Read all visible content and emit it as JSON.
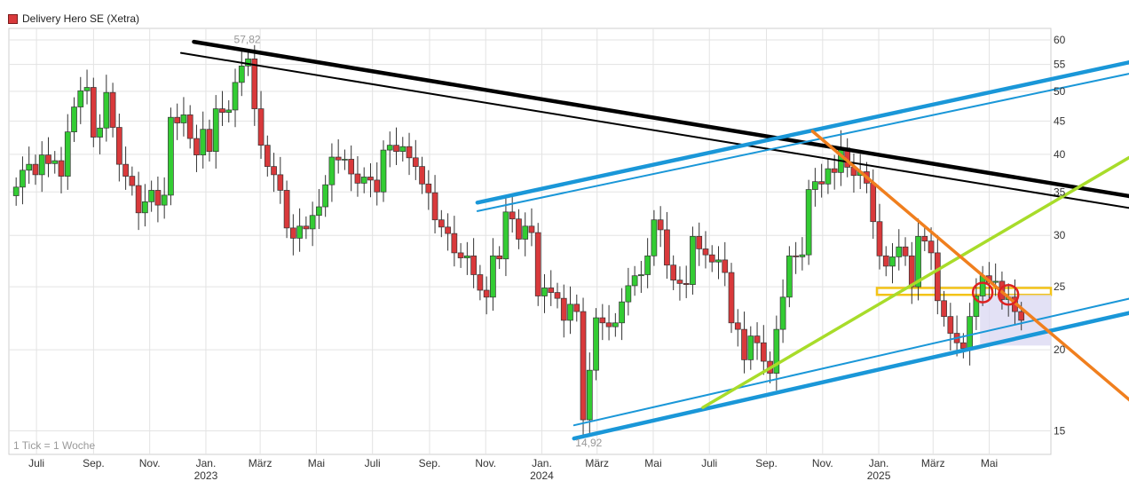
{
  "legend": {
    "label": "Delivery Hero SE (Xetra)",
    "swatch_color": "#d9393b"
  },
  "footnote": "1 Tick = 1 Woche",
  "colors": {
    "up": "#33cc33",
    "down": "#d9393b",
    "grid": "#e3e3e3",
    "black_line": "#000000",
    "blue_line": "#1a97d8",
    "orange_line": "#f07f1e",
    "lime_line": "#a8dc2a",
    "yellow_box": "#f3c317",
    "circle": "#dd2222",
    "shade": "#dcdaf3"
  },
  "chart_data": {
    "type": "candlestick",
    "title": "Delivery Hero SE (Xetra)",
    "y_scale": "log",
    "ylim": [
      13.8,
      62.5
    ],
    "y_ticks": [
      15,
      20,
      25,
      30,
      35,
      40,
      45,
      50,
      55,
      60
    ],
    "x_ticks": [
      {
        "label": "Juli",
        "date": "2022-07-01"
      },
      {
        "label": "Sep.",
        "date": "2022-09-01"
      },
      {
        "label": "Nov.",
        "date": "2022-11-01"
      },
      {
        "label": "Jan.",
        "date": "2023-01-01",
        "year": "2023"
      },
      {
        "label": "März",
        "date": "2023-03-01"
      },
      {
        "label": "Mai",
        "date": "2023-05-01"
      },
      {
        "label": "Juli",
        "date": "2023-07-01"
      },
      {
        "label": "Sep.",
        "date": "2023-09-01"
      },
      {
        "label": "Nov.",
        "date": "2023-11-01"
      },
      {
        "label": "Jan.",
        "date": "2024-01-01",
        "year": "2024"
      },
      {
        "label": "März",
        "date": "2024-03-01"
      },
      {
        "label": "Mai",
        "date": "2024-05-01"
      },
      {
        "label": "Juli",
        "date": "2024-07-01"
      },
      {
        "label": "Sep.",
        "date": "2024-09-01"
      },
      {
        "label": "Nov.",
        "date": "2024-11-01"
      },
      {
        "label": "Jan.",
        "date": "2025-01-01",
        "year": "2025"
      },
      {
        "label": "März",
        "date": "2025-03-01"
      },
      {
        "label": "Mai",
        "date": "2025-05-01"
      }
    ],
    "grid": true,
    "annotations": [
      {
        "text": "57,82",
        "date": "2023-02-13",
        "value": 57.82,
        "kind": "high"
      },
      {
        "text": "14,92",
        "date": "2024-02-19",
        "value": 14.92,
        "kind": "low"
      }
    ],
    "weekly_close": [
      {
        "date": "2022-06-06",
        "close": 35.6
      },
      {
        "date": "2022-06-13",
        "close": 37.8
      },
      {
        "date": "2022-06-20",
        "close": 38.6
      },
      {
        "date": "2022-06-27",
        "close": 37.2
      },
      {
        "date": "2022-07-04",
        "close": 39.9
      },
      {
        "date": "2022-07-11",
        "close": 38.7
      },
      {
        "date": "2022-07-18",
        "close": 39.1
      },
      {
        "date": "2022-07-25",
        "close": 37.0
      },
      {
        "date": "2022-08-01",
        "close": 43.3
      },
      {
        "date": "2022-08-08",
        "close": 47.3
      },
      {
        "date": "2022-08-15",
        "close": 50.1
      },
      {
        "date": "2022-08-22",
        "close": 50.7
      },
      {
        "date": "2022-08-29",
        "close": 42.5
      },
      {
        "date": "2022-09-05",
        "close": 43.9
      },
      {
        "date": "2022-09-12",
        "close": 49.8
      },
      {
        "date": "2022-09-19",
        "close": 44.0
      },
      {
        "date": "2022-09-26",
        "close": 38.6
      },
      {
        "date": "2022-10-03",
        "close": 37.0
      },
      {
        "date": "2022-10-10",
        "close": 35.8
      },
      {
        "date": "2022-10-17",
        "close": 32.5
      },
      {
        "date": "2022-10-24",
        "close": 33.8
      },
      {
        "date": "2022-10-31",
        "close": 35.2
      },
      {
        "date": "2022-11-07",
        "close": 33.4
      },
      {
        "date": "2022-11-14",
        "close": 34.6
      },
      {
        "date": "2022-11-21",
        "close": 45.6
      },
      {
        "date": "2022-11-28",
        "close": 44.7
      },
      {
        "date": "2022-12-05",
        "close": 46.0
      },
      {
        "date": "2022-12-12",
        "close": 42.3
      },
      {
        "date": "2022-12-19",
        "close": 39.9
      },
      {
        "date": "2022-12-26",
        "close": 43.7
      },
      {
        "date": "2023-01-02",
        "close": 40.4
      },
      {
        "date": "2023-01-09",
        "close": 47.0
      },
      {
        "date": "2023-01-16",
        "close": 46.4
      },
      {
        "date": "2023-01-23",
        "close": 46.8
      },
      {
        "date": "2023-01-30",
        "close": 51.6
      },
      {
        "date": "2023-02-06",
        "close": 54.7
      },
      {
        "date": "2023-02-13",
        "close": 56.1
      },
      {
        "date": "2023-02-20",
        "close": 47.0
      },
      {
        "date": "2023-02-27",
        "close": 41.3
      },
      {
        "date": "2023-03-06",
        "close": 38.3
      },
      {
        "date": "2023-03-13",
        "close": 37.2
      },
      {
        "date": "2023-03-20",
        "close": 35.2
      },
      {
        "date": "2023-03-27",
        "close": 30.8
      },
      {
        "date": "2023-04-03",
        "close": 29.7
      },
      {
        "date": "2023-04-10",
        "close": 31.0
      },
      {
        "date": "2023-04-17",
        "close": 30.7
      },
      {
        "date": "2023-04-24",
        "close": 32.2
      },
      {
        "date": "2023-05-01",
        "close": 33.2
      },
      {
        "date": "2023-05-08",
        "close": 35.9
      },
      {
        "date": "2023-05-15",
        "close": 39.6
      },
      {
        "date": "2023-05-22",
        "close": 39.2
      },
      {
        "date": "2023-05-29",
        "close": 39.3
      },
      {
        "date": "2023-06-05",
        "close": 37.3
      },
      {
        "date": "2023-06-12",
        "close": 36.1
      },
      {
        "date": "2023-06-19",
        "close": 36.9
      },
      {
        "date": "2023-06-26",
        "close": 36.5
      },
      {
        "date": "2023-07-03",
        "close": 35.0
      },
      {
        "date": "2023-07-10",
        "close": 40.6
      },
      {
        "date": "2023-07-17",
        "close": 41.3
      },
      {
        "date": "2023-07-24",
        "close": 40.4
      },
      {
        "date": "2023-07-31",
        "close": 41.1
      },
      {
        "date": "2023-08-07",
        "close": 39.5
      },
      {
        "date": "2023-08-14",
        "close": 38.3
      },
      {
        "date": "2023-08-21",
        "close": 36.0
      },
      {
        "date": "2023-08-28",
        "close": 34.9
      },
      {
        "date": "2023-09-04",
        "close": 31.7
      },
      {
        "date": "2023-09-11",
        "close": 30.9
      },
      {
        "date": "2023-09-18",
        "close": 30.2
      },
      {
        "date": "2023-09-25",
        "close": 28.2
      },
      {
        "date": "2023-10-02",
        "close": 27.7
      },
      {
        "date": "2023-10-09",
        "close": 27.9
      },
      {
        "date": "2023-10-16",
        "close": 26.1
      },
      {
        "date": "2023-10-23",
        "close": 24.7
      },
      {
        "date": "2023-10-30",
        "close": 24.1
      },
      {
        "date": "2023-11-06",
        "close": 27.9
      },
      {
        "date": "2023-11-13",
        "close": 27.6
      },
      {
        "date": "2023-11-20",
        "close": 32.6
      },
      {
        "date": "2023-11-27",
        "close": 31.8
      },
      {
        "date": "2023-12-04",
        "close": 29.6
      },
      {
        "date": "2023-12-11",
        "close": 31.0
      },
      {
        "date": "2023-12-18",
        "close": 30.3
      },
      {
        "date": "2023-12-25",
        "close": 24.2
      },
      {
        "date": "2024-01-01",
        "close": 24.9
      },
      {
        "date": "2024-01-08",
        "close": 24.5
      },
      {
        "date": "2024-01-15",
        "close": 24.0
      },
      {
        "date": "2024-01-22",
        "close": 22.2
      },
      {
        "date": "2024-01-29",
        "close": 23.5
      },
      {
        "date": "2024-02-05",
        "close": 22.9
      },
      {
        "date": "2024-02-12",
        "close": 15.6
      },
      {
        "date": "2024-02-19",
        "close": 18.6
      },
      {
        "date": "2024-02-26",
        "close": 22.4
      },
      {
        "date": "2024-03-04",
        "close": 22.0
      },
      {
        "date": "2024-03-11",
        "close": 21.7
      },
      {
        "date": "2024-03-18",
        "close": 22.0
      },
      {
        "date": "2024-03-25",
        "close": 23.7
      },
      {
        "date": "2024-04-01",
        "close": 25.1
      },
      {
        "date": "2024-04-08",
        "close": 26.0
      },
      {
        "date": "2024-04-15",
        "close": 26.1
      },
      {
        "date": "2024-04-22",
        "close": 27.9
      },
      {
        "date": "2024-04-29",
        "close": 31.7
      },
      {
        "date": "2024-05-06",
        "close": 30.6
      },
      {
        "date": "2024-05-13",
        "close": 27.0
      },
      {
        "date": "2024-05-20",
        "close": 25.6
      },
      {
        "date": "2024-05-27",
        "close": 25.3
      },
      {
        "date": "2024-06-03",
        "close": 25.2
      },
      {
        "date": "2024-06-10",
        "close": 29.9
      },
      {
        "date": "2024-06-17",
        "close": 28.6
      },
      {
        "date": "2024-06-24",
        "close": 28.0
      },
      {
        "date": "2024-07-01",
        "close": 27.3
      },
      {
        "date": "2024-07-08",
        "close": 27.5
      },
      {
        "date": "2024-07-15",
        "close": 26.3
      },
      {
        "date": "2024-07-22",
        "close": 22.0
      },
      {
        "date": "2024-07-29",
        "close": 21.5
      },
      {
        "date": "2024-08-05",
        "close": 19.3
      },
      {
        "date": "2024-08-12",
        "close": 21.0
      },
      {
        "date": "2024-08-19",
        "close": 20.5
      },
      {
        "date": "2024-08-26",
        "close": 19.2
      },
      {
        "date": "2024-09-02",
        "close": 18.4
      },
      {
        "date": "2024-09-09",
        "close": 21.5
      },
      {
        "date": "2024-09-16",
        "close": 24.1
      },
      {
        "date": "2024-09-23",
        "close": 27.9
      },
      {
        "date": "2024-09-30",
        "close": 27.8
      },
      {
        "date": "2024-10-07",
        "close": 28.0
      },
      {
        "date": "2024-10-14",
        "close": 35.3
      },
      {
        "date": "2024-10-21",
        "close": 36.3
      },
      {
        "date": "2024-10-28",
        "close": 36.0
      },
      {
        "date": "2024-11-04",
        "close": 38.0
      },
      {
        "date": "2024-11-11",
        "close": 37.5
      },
      {
        "date": "2024-11-18",
        "close": 40.9
      },
      {
        "date": "2024-11-25",
        "close": 38.2
      },
      {
        "date": "2024-12-02",
        "close": 37.1
      },
      {
        "date": "2024-12-09",
        "close": 37.6
      },
      {
        "date": "2024-12-16",
        "close": 36.1
      },
      {
        "date": "2024-12-23",
        "close": 31.5
      },
      {
        "date": "2024-12-30",
        "close": 27.9
      },
      {
        "date": "2025-01-06",
        "close": 26.9
      },
      {
        "date": "2025-01-13",
        "close": 27.8
      },
      {
        "date": "2025-01-20",
        "close": 28.8
      },
      {
        "date": "2025-01-27",
        "close": 27.9
      },
      {
        "date": "2025-02-03",
        "close": 25.0
      },
      {
        "date": "2025-02-10",
        "close": 29.9
      },
      {
        "date": "2025-02-17",
        "close": 29.4
      },
      {
        "date": "2025-02-24",
        "close": 28.2
      },
      {
        "date": "2025-03-03",
        "close": 23.8
      },
      {
        "date": "2025-03-10",
        "close": 22.5
      },
      {
        "date": "2025-03-17",
        "close": 21.2
      },
      {
        "date": "2025-03-24",
        "close": 20.5
      },
      {
        "date": "2025-03-31",
        "close": 20.1
      },
      {
        "date": "2025-04-07",
        "close": 22.5
      },
      {
        "date": "2025-04-14",
        "close": 24.2
      },
      {
        "date": "2025-04-21",
        "close": 26.0
      },
      {
        "date": "2025-04-28",
        "close": 25.4
      },
      {
        "date": "2025-05-05",
        "close": 25.5
      },
      {
        "date": "2025-05-12",
        "close": 23.9
      },
      {
        "date": "2025-05-19",
        "close": 24.1
      },
      {
        "date": "2025-05-26",
        "close": 22.9
      },
      {
        "date": "2025-06-02",
        "close": 22.2
      }
    ],
    "trendlines": [
      {
        "color": "#000000",
        "width": 4.5,
        "from": {
          "date": "2022-12-19",
          "value": 59.6
        },
        "to": {
          "date": "2025-07-07",
          "value": 36.1
        }
      },
      {
        "color": "#000000",
        "width": 2,
        "from": {
          "date": "2022-12-05",
          "value": 57.3
        },
        "to": {
          "date": "2025-07-07",
          "value": 34.6
        }
      },
      {
        "color": "#1a97d8",
        "width": 4.5,
        "from": {
          "date": "2023-10-23",
          "value": 33.7
        },
        "to": {
          "date": "2025-07-07",
          "value": 52.2
        }
      },
      {
        "color": "#1a97d8",
        "width": 2,
        "from": {
          "date": "2023-10-23",
          "value": 32.7
        },
        "to": {
          "date": "2025-07-07",
          "value": 50.2
        }
      },
      {
        "color": "#1a97d8",
        "width": 4.5,
        "from": {
          "date": "2024-02-05",
          "value": 14.6
        },
        "to": {
          "date": "2025-07-07",
          "value": 21.4
        }
      },
      {
        "color": "#1a97d8",
        "width": 2,
        "from": {
          "date": "2024-02-05",
          "value": 15.3
        },
        "to": {
          "date": "2025-07-07",
          "value": 22.5
        }
      },
      {
        "color": "#a8dc2a",
        "width": 3.5,
        "from": {
          "date": "2024-06-24",
          "value": 16.3
        },
        "to": {
          "date": "2025-07-07",
          "value": 33.6
        }
      },
      {
        "color": "#f07f1e",
        "width": 3.5,
        "from": {
          "date": "2024-10-21",
          "value": 43.4
        },
        "to": {
          "date": "2025-07-07",
          "value": 21.2
        }
      }
    ],
    "zones": [
      {
        "color": "#f3c317",
        "from": {
          "date": "2024-12-30",
          "value": 24.3
        },
        "to": {
          "date": "2025-07-07",
          "value": 24.9
        }
      },
      {
        "color": "#dcdaf3",
        "from": {
          "date": "2025-04-21",
          "value": 20.3
        },
        "to": {
          "date": "2025-07-07",
          "value": 24.3
        }
      }
    ],
    "circles": [
      {
        "date": "2025-04-21",
        "value": 24.5
      },
      {
        "date": "2025-05-19",
        "value": 24.3
      }
    ]
  }
}
